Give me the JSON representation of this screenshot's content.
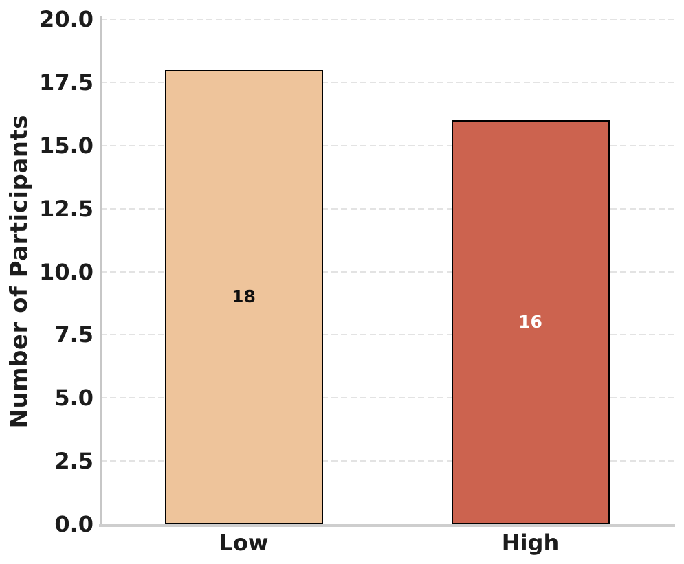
{
  "chart_data": {
    "type": "bar",
    "title": "",
    "xlabel": "",
    "ylabel": "Number of Participants",
    "categories": [
      "Low",
      "High"
    ],
    "values": [
      18,
      16
    ],
    "value_labels": [
      "18",
      "16"
    ],
    "bar_colors": [
      "#EEC49B",
      "#CC634F"
    ],
    "value_label_colors": [
      "#0f0f0f",
      "#ffffff"
    ],
    "bar_edge_color": "#000000",
    "ylim": [
      0,
      20
    ],
    "yticks": [
      "0.0",
      "2.5",
      "5.0",
      "7.5",
      "10.0",
      "12.5",
      "15.0",
      "17.5",
      "20.0"
    ],
    "grid": "horizontal-dashed",
    "legend": "none"
  }
}
